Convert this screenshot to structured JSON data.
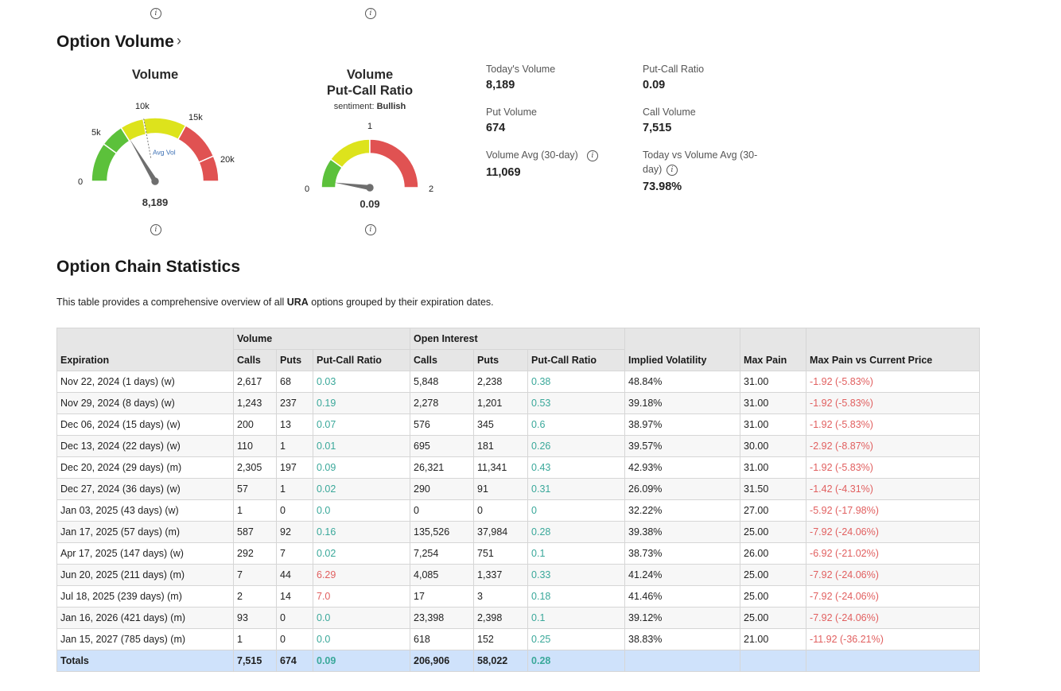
{
  "icons": {
    "info": "i"
  },
  "option_volume": {
    "title": "Option Volume",
    "chevron": "›",
    "volume_gauge": {
      "title": "Volume",
      "ticks": [
        "0",
        "5k",
        "10k",
        "15k",
        "20k"
      ],
      "avg_label": "Avg Vol",
      "value": "8,189",
      "needle_value": 8189,
      "max": 25000
    },
    "pcr_gauge": {
      "title_line1": "Volume",
      "title_line2": "Put-Call Ratio",
      "sentiment_label": "sentiment:",
      "sentiment_value": "Bullish",
      "ticks": [
        "0",
        "1",
        "2"
      ],
      "value": "0.09",
      "needle_value": 0.09,
      "max": 2
    },
    "stats": {
      "todays_volume_label": "Today's Volume",
      "todays_volume": "8,189",
      "put_call_ratio_label": "Put-Call Ratio",
      "put_call_ratio": "0.09",
      "put_volume_label": "Put Volume",
      "put_volume": "674",
      "call_volume_label": "Call Volume",
      "call_volume": "7,515",
      "volume_avg_label": "Volume Avg (30-day)",
      "volume_avg": "11,069",
      "today_vs_avg_label_line1": "Today vs Volume Avg (30-",
      "today_vs_avg_label_line2": "day)",
      "today_vs_avg": "73.98%"
    }
  },
  "chain_stats": {
    "title": "Option Chain Statistics",
    "desc_prefix": "This table provides a comprehensive overview of all ",
    "desc_ticker": "URA",
    "desc_suffix": " options grouped by their expiration dates.",
    "headers": {
      "expiration": "Expiration",
      "volume_group": "Volume",
      "oi_group": "Open Interest",
      "calls": "Calls",
      "puts": "Puts",
      "pcr": "Put-Call Ratio",
      "iv": "Implied Volatility",
      "max_pain": "Max Pain",
      "max_pain_vs": "Max Pain vs Current Price"
    },
    "rows": [
      {
        "exp": "Nov 22, 2024 (1 days) (w)",
        "vc": "2,617",
        "vp": "68",
        "vpcr": "0.03",
        "oc": "5,848",
        "op": "2,238",
        "opcr": "0.38",
        "iv": "48.84%",
        "mp": "31.00",
        "mpv": "-1.92 (-5.83%)"
      },
      {
        "exp": "Nov 29, 2024 (8 days) (w)",
        "vc": "1,243",
        "vp": "237",
        "vpcr": "0.19",
        "oc": "2,278",
        "op": "1,201",
        "opcr": "0.53",
        "iv": "39.18%",
        "mp": "31.00",
        "mpv": "-1.92 (-5.83%)"
      },
      {
        "exp": "Dec 06, 2024 (15 days) (w)",
        "vc": "200",
        "vp": "13",
        "vpcr": "0.07",
        "oc": "576",
        "op": "345",
        "opcr": "0.6",
        "iv": "38.97%",
        "mp": "31.00",
        "mpv": "-1.92 (-5.83%)"
      },
      {
        "exp": "Dec 13, 2024 (22 days) (w)",
        "vc": "110",
        "vp": "1",
        "vpcr": "0.01",
        "oc": "695",
        "op": "181",
        "opcr": "0.26",
        "iv": "39.57%",
        "mp": "30.00",
        "mpv": "-2.92 (-8.87%)"
      },
      {
        "exp": "Dec 20, 2024 (29 days) (m)",
        "vc": "2,305",
        "vp": "197",
        "vpcr": "0.09",
        "oc": "26,321",
        "op": "11,341",
        "opcr": "0.43",
        "iv": "42.93%",
        "mp": "31.00",
        "mpv": "-1.92 (-5.83%)"
      },
      {
        "exp": "Dec 27, 2024 (36 days) (w)",
        "vc": "57",
        "vp": "1",
        "vpcr": "0.02",
        "oc": "290",
        "op": "91",
        "opcr": "0.31",
        "iv": "26.09%",
        "mp": "31.50",
        "mpv": "-1.42 (-4.31%)"
      },
      {
        "exp": "Jan 03, 2025 (43 days) (w)",
        "vc": "1",
        "vp": "0",
        "vpcr": "0.0",
        "oc": "0",
        "op": "0",
        "opcr": "0",
        "iv": "32.22%",
        "mp": "27.00",
        "mpv": "-5.92 (-17.98%)"
      },
      {
        "exp": "Jan 17, 2025 (57 days) (m)",
        "vc": "587",
        "vp": "92",
        "vpcr": "0.16",
        "oc": "135,526",
        "op": "37,984",
        "opcr": "0.28",
        "iv": "39.38%",
        "mp": "25.00",
        "mpv": "-7.92 (-24.06%)"
      },
      {
        "exp": "Apr 17, 2025 (147 days) (w)",
        "vc": "292",
        "vp": "7",
        "vpcr": "0.02",
        "oc": "7,254",
        "op": "751",
        "opcr": "0.1",
        "iv": "38.73%",
        "mp": "26.00",
        "mpv": "-6.92 (-21.02%)"
      },
      {
        "exp": "Jun 20, 2025 (211 days) (m)",
        "vc": "7",
        "vp": "44",
        "vpcr": "6.29",
        "oc": "4,085",
        "op": "1,337",
        "opcr": "0.33",
        "iv": "41.24%",
        "mp": "25.00",
        "mpv": "-7.92 (-24.06%)"
      },
      {
        "exp": "Jul 18, 2025 (239 days) (m)",
        "vc": "2",
        "vp": "14",
        "vpcr": "7.0",
        "oc": "17",
        "op": "3",
        "opcr": "0.18",
        "iv": "41.46%",
        "mp": "25.00",
        "mpv": "-7.92 (-24.06%)"
      },
      {
        "exp": "Jan 16, 2026 (421 days) (m)",
        "vc": "93",
        "vp": "0",
        "vpcr": "0.0",
        "oc": "23,398",
        "op": "2,398",
        "opcr": "0.1",
        "iv": "39.12%",
        "mp": "25.00",
        "mpv": "-7.92 (-24.06%)"
      },
      {
        "exp": "Jan 15, 2027 (785 days) (m)",
        "vc": "1",
        "vp": "0",
        "vpcr": "0.0",
        "oc": "618",
        "op": "152",
        "opcr": "0.25",
        "iv": "38.83%",
        "mp": "21.00",
        "mpv": "-11.92 (-36.21%)"
      }
    ],
    "totals": {
      "label": "Totals",
      "vc": "7,515",
      "vp": "674",
      "vpcr": "0.09",
      "oc": "206,906",
      "op": "58,022",
      "opcr": "0.28"
    }
  },
  "colors": {
    "green": "#3aa89a",
    "red": "#e15f5f",
    "gauge_green": "#5cc13b",
    "gauge_yellow": "#dde31c",
    "gauge_red": "#e05252"
  }
}
